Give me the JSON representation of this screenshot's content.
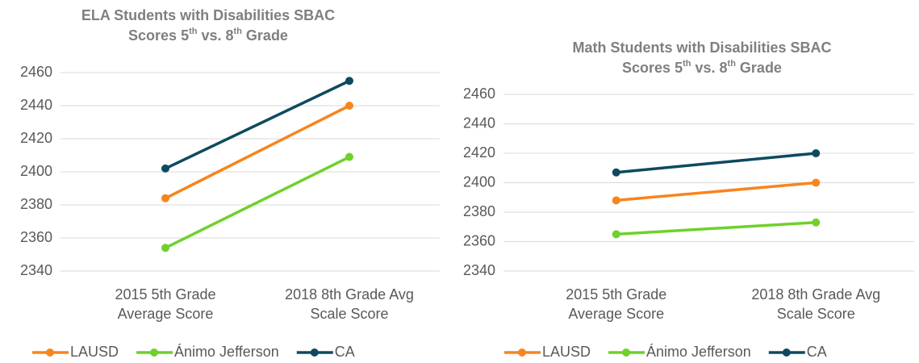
{
  "chart_data": [
    {
      "type": "line",
      "title_lines": [
        "ELA Students with Disabilities SBAC",
        "Scores 5th vs. 8th Grade"
      ],
      "categories": [
        "2015 5th Grade Average Score",
        "2018 8th Grade Avg Scale Score"
      ],
      "series": [
        {
          "name": "LAUSD",
          "color": "#f7851e",
          "values": [
            2384,
            2440
          ]
        },
        {
          "name": "Ánimo Jefferson",
          "color": "#6fd12a",
          "values": [
            2354,
            2409
          ]
        },
        {
          "name": "CA",
          "color": "#0d4a5f",
          "values": [
            2402,
            2455
          ]
        }
      ],
      "ylim": [
        2340,
        2460
      ],
      "yticks": [
        2340,
        2360,
        2380,
        2400,
        2420,
        2440,
        2460
      ],
      "grid": true,
      "legend": "bottom"
    },
    {
      "type": "line",
      "title_lines": [
        "Math Students with Disabilities SBAC",
        "Scores 5th vs. 8th Grade"
      ],
      "categories": [
        "2015 5th Grade Average Score",
        "2018 8th Grade Avg Scale Score"
      ],
      "series": [
        {
          "name": "LAUSD",
          "color": "#f7851e",
          "values": [
            2388,
            2400
          ]
        },
        {
          "name": "Ánimo Jefferson",
          "color": "#6fd12a",
          "values": [
            2365,
            2373
          ]
        },
        {
          "name": "CA",
          "color": "#0d4a5f",
          "values": [
            2407,
            2420
          ]
        }
      ],
      "ylim": [
        2340,
        2460
      ],
      "yticks": [
        2340,
        2360,
        2380,
        2400,
        2420,
        2440,
        2460
      ],
      "grid": true,
      "legend": "bottom"
    }
  ]
}
